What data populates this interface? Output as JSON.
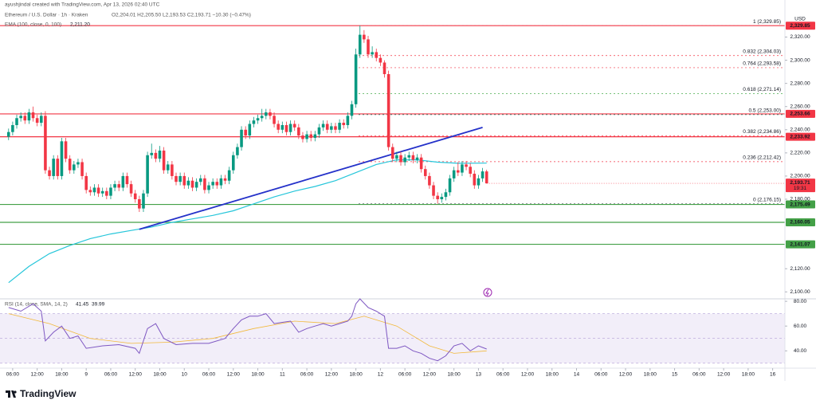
{
  "chart_data": {
    "type": "candlestick",
    "credit": "ayushjindal created with TradingView.com, Apr 13, 2026 02:40 UTC",
    "symbol": "Ethereum / U.S. Dollar · 1h · Kraken",
    "ohlc_legend": "O2,204.01 H2,205.50 L2,193.53 C2,193.71 −10.30 (−0.47%)",
    "currency": "USD",
    "logo": "TradingView",
    "up_color": "#089981",
    "down_color": "#f23645",
    "xlim": [
      2.9,
      195
    ],
    "ylim": [
      2094,
      2352
    ],
    "xticks": [
      {
        "value": 6,
        "label": "06:00"
      },
      {
        "value": 12,
        "label": "12:00"
      },
      {
        "value": 18,
        "label": "18:00"
      },
      {
        "value": 24,
        "label": "9"
      },
      {
        "value": 30,
        "label": "06:00"
      },
      {
        "value": 36,
        "label": "12:00"
      },
      {
        "value": 42,
        "label": "18:00"
      },
      {
        "value": 48,
        "label": "10"
      },
      {
        "value": 54,
        "label": "06:00"
      },
      {
        "value": 60,
        "label": "12:00"
      },
      {
        "value": 66,
        "label": "18:00"
      },
      {
        "value": 72,
        "label": "11"
      },
      {
        "value": 78,
        "label": "06:00"
      },
      {
        "value": 84,
        "label": "12:00"
      },
      {
        "value": 90,
        "label": "18:00"
      },
      {
        "value": 96,
        "label": "12"
      },
      {
        "value": 102,
        "label": "06:00"
      },
      {
        "value": 108,
        "label": "12:00"
      },
      {
        "value": 114,
        "label": "18:00"
      },
      {
        "value": 120,
        "label": "13"
      },
      {
        "value": 126,
        "label": "06:00"
      },
      {
        "value": 132,
        "label": "12:00"
      },
      {
        "value": 138,
        "label": "18:00"
      },
      {
        "value": 144,
        "label": "14"
      },
      {
        "value": 150,
        "label": "06:00"
      },
      {
        "value": 156,
        "label": "12:00"
      },
      {
        "value": 162,
        "label": "18:00"
      },
      {
        "value": 168,
        "label": "15"
      },
      {
        "value": 174,
        "label": "06:00"
      },
      {
        "value": 180,
        "label": "12:00"
      },
      {
        "value": 186,
        "label": "18:00"
      },
      {
        "value": 192,
        "label": "16"
      }
    ],
    "yticks": [
      {
        "value": 2320,
        "label": "2,320.00"
      },
      {
        "value": 2300,
        "label": "2,300.00"
      },
      {
        "value": 2280,
        "label": "2,280.00"
      },
      {
        "value": 2260,
        "label": "2,260.00"
      },
      {
        "value": 2240,
        "label": "2,240.00"
      },
      {
        "value": 2220,
        "label": "2,220.00"
      },
      {
        "value": 2200,
        "label": "2,200.00"
      },
      {
        "value": 2180,
        "label": "2,180.00"
      },
      {
        "value": 2120,
        "label": "2,120.00"
      },
      {
        "value": 2100,
        "label": "2,100.00"
      }
    ],
    "x": [
      5,
      6,
      7,
      8,
      9,
      10,
      11,
      12,
      13,
      14,
      15,
      16,
      17,
      18,
      19,
      20,
      21,
      22,
      23,
      24,
      25,
      26,
      27,
      28,
      29,
      30,
      31,
      32,
      33,
      34,
      35,
      36,
      37,
      38,
      39,
      40,
      41,
      42,
      43,
      44,
      45,
      46,
      47,
      48,
      49,
      50,
      51,
      52,
      53,
      54,
      55,
      56,
      57,
      58,
      59,
      60,
      61,
      62,
      63,
      64,
      65,
      66,
      67,
      68,
      69,
      70,
      71,
      72,
      73,
      74,
      75,
      76,
      77,
      78,
      79,
      80,
      81,
      82,
      83,
      84,
      85,
      86,
      87,
      88,
      89,
      90,
      91,
      92,
      93,
      94,
      95,
      96,
      97,
      98,
      99,
      100,
      101,
      102,
      103,
      104,
      105,
      106,
      107,
      108,
      109,
      110,
      111,
      112,
      113,
      114,
      115,
      116,
      117,
      118,
      119,
      120,
      121,
      122
    ],
    "open": [
      2234,
      2238,
      2244,
      2250,
      2252,
      2248,
      2255,
      2250,
      2246,
      2252,
      2205,
      2200,
      2215,
      2200,
      2230,
      2215,
      2205,
      2210,
      2212,
      2200,
      2188,
      2186,
      2190,
      2185,
      2187,
      2183,
      2190,
      2193,
      2190,
      2200,
      2193,
      2185,
      2180,
      2172,
      2185,
      2218,
      2220,
      2215,
      2222,
      2205,
      2210,
      2200,
      2195,
      2200,
      2192,
      2196,
      2190,
      2195,
      2198,
      2188,
      2192,
      2195,
      2192,
      2198,
      2196,
      2205,
      2218,
      2225,
      2240,
      2235,
      2245,
      2248,
      2250,
      2252,
      2255,
      2252,
      2245,
      2240,
      2244,
      2238,
      2245,
      2242,
      2235,
      2232,
      2236,
      2233,
      2236,
      2242,
      2245,
      2240,
      2243,
      2240,
      2246,
      2244,
      2252,
      2262,
      2305,
      2322,
      2318,
      2305,
      2307,
      2302,
      2298,
      2288,
      2225,
      2215,
      2218,
      2212,
      2216,
      2218,
      2214,
      2216,
      2206,
      2200,
      2192,
      2183,
      2180,
      2182,
      2186,
      2198,
      2205,
      2203,
      2210,
      2208,
      2202,
      2192,
      2198,
      2204.01
    ],
    "high": [
      2241,
      2247,
      2253,
      2255,
      2255,
      2258,
      2260,
      2253,
      2255,
      2256,
      2208,
      2218,
      2218,
      2233,
      2233,
      2218,
      2213,
      2215,
      2215,
      2203,
      2191,
      2193,
      2193,
      2190,
      2190,
      2193,
      2196,
      2196,
      2203,
      2203,
      2196,
      2188,
      2183,
      2188,
      2221,
      2228,
      2223,
      2226,
      2225,
      2213,
      2213,
      2203,
      2203,
      2203,
      2199,
      2199,
      2198,
      2201,
      2201,
      2195,
      2198,
      2198,
      2201,
      2201,
      2208,
      2221,
      2228,
      2243,
      2243,
      2248,
      2251,
      2253,
      2258,
      2258,
      2258,
      2255,
      2248,
      2247,
      2247,
      2248,
      2248,
      2245,
      2238,
      2239,
      2239,
      2239,
      2245,
      2248,
      2248,
      2246,
      2246,
      2249,
      2249,
      2255,
      2265,
      2310,
      2329.85,
      2326,
      2321,
      2312,
      2310,
      2305,
      2300,
      2291,
      2228,
      2221,
      2221,
      2219,
      2221,
      2221,
      2219,
      2219,
      2209,
      2203,
      2195,
      2186,
      2185,
      2189,
      2201,
      2208,
      2212,
      2213,
      2213,
      2211,
      2205,
      2201,
      2207,
      2205.5
    ],
    "low": [
      2231,
      2235,
      2241,
      2247,
      2245,
      2245,
      2247,
      2243,
      2243,
      2202,
      2197,
      2197,
      2197,
      2197,
      2212,
      2202,
      2202,
      2207,
      2197,
      2185,
      2183,
      2183,
      2182,
      2182,
      2180,
      2180,
      2187,
      2187,
      2187,
      2190,
      2182,
      2177,
      2169,
      2169,
      2182,
      2215,
      2212,
      2212,
      2202,
      2202,
      2197,
      2192,
      2192,
      2189,
      2189,
      2187,
      2187,
      2192,
      2185,
      2185,
      2189,
      2189,
      2189,
      2193,
      2193,
      2202,
      2215,
      2222,
      2232,
      2232,
      2242,
      2245,
      2247,
      2249,
      2249,
      2242,
      2237,
      2237,
      2235,
      2235,
      2239,
      2232,
      2229,
      2229,
      2230,
      2230,
      2233,
      2239,
      2237,
      2237,
      2237,
      2237,
      2241,
      2241,
      2249,
      2259,
      2302,
      2315,
      2302,
      2302,
      2299,
      2295,
      2285,
      2222,
      2212,
      2212,
      2209,
      2209,
      2213,
      2211,
      2211,
      2203,
      2197,
      2189,
      2180,
      2176.15,
      2177,
      2179,
      2183,
      2195,
      2200,
      2200,
      2205,
      2199,
      2189,
      2189,
      2195,
      2193.53
    ],
    "close": [
      2238,
      2244,
      2250,
      2252,
      2248,
      2255,
      2250,
      2246,
      2252,
      2205,
      2200,
      2215,
      2200,
      2230,
      2215,
      2205,
      2210,
      2212,
      2200,
      2188,
      2186,
      2190,
      2185,
      2187,
      2183,
      2190,
      2193,
      2190,
      2200,
      2193,
      2185,
      2180,
      2172,
      2185,
      2218,
      2220,
      2215,
      2222,
      2205,
      2210,
      2200,
      2195,
      2200,
      2192,
      2196,
      2190,
      2195,
      2198,
      2188,
      2192,
      2195,
      2192,
      2198,
      2196,
      2205,
      2218,
      2225,
      2240,
      2235,
      2245,
      2248,
      2250,
      2252,
      2255,
      2252,
      2245,
      2240,
      2244,
      2238,
      2245,
      2242,
      2235,
      2232,
      2236,
      2233,
      2236,
      2242,
      2245,
      2240,
      2243,
      2240,
      2246,
      2244,
      2252,
      2262,
      2305,
      2322,
      2318,
      2305,
      2307,
      2302,
      2298,
      2288,
      2225,
      2215,
      2218,
      2212,
      2216,
      2218,
      2214,
      2216,
      2206,
      2200,
      2192,
      2183,
      2180,
      2182,
      2186,
      2198,
      2205,
      2203,
      2210,
      2208,
      2202,
      2192,
      2198,
      2204.01,
      2193.71
    ],
    "ema": {
      "name": "EMA (100, close, 0, 100)",
      "color": "#26c6da",
      "last": {
        "value": 2211.2,
        "label": "2,211.20"
      },
      "x": [
        5,
        10,
        15,
        20,
        25,
        30,
        35,
        40,
        45,
        50,
        55,
        60,
        65,
        70,
        75,
        80,
        85,
        90,
        95,
        100,
        105,
        110,
        115,
        122
      ],
      "values": [
        2108,
        2122,
        2133,
        2140,
        2146,
        2150,
        2153,
        2156,
        2160,
        2163,
        2166,
        2170,
        2176,
        2182,
        2187,
        2191,
        2196,
        2203,
        2210,
        2214,
        2214,
        2212,
        2211,
        2211.2
      ]
    },
    "trendline": {
      "color": "#2431c9",
      "x": [
        37,
        121
      ],
      "values": [
        2154,
        2242
      ]
    },
    "levels": [
      {
        "value": 2329.85,
        "label": "2,329.85",
        "color": "#f23645"
      },
      {
        "value": 2253.66,
        "label": "2,253.66",
        "color": "#f23645"
      },
      {
        "value": 2233.92,
        "label": "2,233.92",
        "color": "#f23645"
      },
      {
        "value": 2175.49,
        "label": "2,175.49",
        "color": "#43a047"
      },
      {
        "value": 2160.05,
        "label": "2,160.05",
        "color": "#43a047"
      },
      {
        "value": 2141.07,
        "label": "2,141.07",
        "color": "#43a047"
      }
    ],
    "fib": [
      {
        "value": 2329.85,
        "label": "1 (2,329.85)",
        "color": "#5b7bd5"
      },
      {
        "value": 2304.03,
        "label": "0.832 (2,304.03)",
        "color": "#f23645"
      },
      {
        "value": 2293.58,
        "label": "0.764 (2,293.58)",
        "color": "#f23645"
      },
      {
        "value": 2271.14,
        "label": "0.618 (2,271.14)",
        "color": "#4caf50"
      },
      {
        "value": 2253.0,
        "label": "0.5 (2,253.00)",
        "color": "#089981"
      },
      {
        "value": 2234.86,
        "label": "0.382 (2,234.86)",
        "color": "#f23645"
      },
      {
        "value": 2212.42,
        "label": "0.236 (2,212.42)",
        "color": "#f23645"
      },
      {
        "value": 2176.15,
        "label": "0 (2,176.15)",
        "color": "#787b86"
      }
    ],
    "current": {
      "value": 2193.71,
      "label": "2,193.71",
      "countdown": "19:31"
    },
    "rsi": {
      "name": "RSI (14, close, SMA, 14, 2)",
      "color": "#7e57c2",
      "ylim": [
        26,
        82
      ],
      "yticks": [
        {
          "value": 80,
          "label": "80.00"
        },
        {
          "value": 60,
          "label": "60.00"
        },
        {
          "value": 40,
          "label": "40.00"
        }
      ],
      "band": [
        30,
        50,
        70
      ],
      "last": {
        "value": 41.45,
        "label": "41.45"
      },
      "x": [
        5,
        8,
        11,
        13,
        14,
        16,
        18,
        20,
        22,
        24,
        28,
        32,
        36,
        37,
        39,
        41,
        43,
        46,
        50,
        54,
        58,
        60,
        62,
        64,
        66,
        68,
        70,
        72,
        74,
        76,
        78,
        80,
        82,
        84,
        86,
        88,
        89,
        90,
        91,
        93,
        95,
        97,
        98,
        100,
        102,
        104,
        106,
        108,
        110,
        112,
        114,
        116,
        118,
        120,
        122
      ],
      "values": [
        75,
        72,
        78,
        72,
        48,
        55,
        60,
        50,
        52,
        42,
        44,
        45,
        42,
        38,
        58,
        62,
        50,
        45,
        46,
        46,
        50,
        58,
        65,
        68,
        68,
        70,
        62,
        63,
        64,
        55,
        58,
        60,
        62,
        60,
        62,
        64,
        68,
        78,
        82,
        75,
        72,
        68,
        42,
        42,
        44,
        40,
        38,
        34,
        32,
        36,
        44,
        46,
        40,
        44,
        41.45
      ],
      "sma": {
        "color": "#f2b93b",
        "last": {
          "value": 39.99,
          "label": "39.99"
        },
        "x": [
          5,
          15,
          25,
          35,
          45,
          55,
          65,
          75,
          85,
          92,
          100,
          108,
          114,
          122
        ],
        "values": [
          70,
          62,
          50,
          46,
          47,
          50,
          58,
          64,
          62,
          68,
          60,
          44,
          38,
          39.99
        ]
      }
    }
  }
}
